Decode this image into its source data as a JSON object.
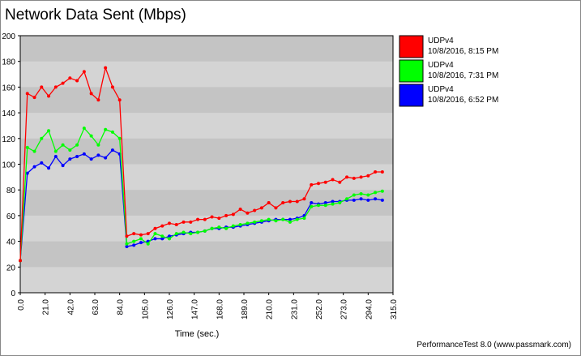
{
  "chart_data": {
    "type": "line",
    "title": "Network Data Sent (Mbps)",
    "x_label": "Time (sec.)",
    "footer": "PerformanceTest 8.0 (www.passmark.com)",
    "x": [
      0,
      6,
      12,
      18,
      24,
      30,
      36,
      42,
      48,
      54,
      60,
      66,
      72,
      78,
      84,
      90,
      96,
      102,
      108,
      114,
      120,
      126,
      132,
      138,
      144,
      150,
      156,
      162,
      168,
      174,
      180,
      186,
      192,
      198,
      204,
      210,
      216,
      222,
      228,
      234,
      240,
      246,
      252,
      258,
      264,
      270,
      276,
      282,
      288,
      294,
      300,
      306
    ],
    "series": [
      {
        "name": "UDPv4",
        "date": "10/8/2016, 8:15 PM",
        "color": "#ff0000",
        "values": [
          25,
          155,
          152,
          160,
          153,
          160,
          163,
          167,
          165,
          172,
          155,
          150,
          175,
          160,
          150,
          44,
          46,
          45,
          46,
          50,
          52,
          54,
          53,
          55,
          55,
          57,
          57,
          59,
          58,
          60,
          61,
          65,
          62,
          64,
          66,
          70,
          66,
          70,
          71,
          71,
          73,
          84,
          85,
          86,
          88,
          86,
          90,
          89,
          90,
          91,
          94,
          94
        ]
      },
      {
        "name": "UDPv4",
        "date": "10/8/2016, 7:31 PM",
        "color": "#00ff00",
        "values": [
          25,
          113,
          110,
          120,
          126,
          110,
          115,
          111,
          115,
          128,
          122,
          115,
          127,
          125,
          120,
          38,
          40,
          42,
          38,
          46,
          44,
          42,
          46,
          47,
          46,
          47,
          48,
          50,
          51,
          50,
          52,
          53,
          54,
          55,
          56,
          57,
          56,
          57,
          55,
          57,
          58,
          67,
          68,
          68,
          69,
          70,
          73,
          76,
          77,
          76,
          78,
          79
        ]
      },
      {
        "name": "UDPv4",
        "date": "10/8/2016, 6:52 PM",
        "color": "#0000ff",
        "values": [
          25,
          93,
          98,
          101,
          97,
          106,
          99,
          104,
          106,
          108,
          104,
          107,
          105,
          111,
          108,
          36,
          37,
          39,
          40,
          42,
          42,
          44,
          45,
          46,
          47,
          47,
          48,
          50,
          50,
          51,
          51,
          52,
          53,
          54,
          55,
          56,
          57,
          57,
          57,
          58,
          60,
          70,
          69,
          70,
          71,
          71,
          72,
          72,
          73,
          72,
          73,
          72
        ]
      }
    ],
    "xlim": [
      0,
      315
    ],
    "xticks": [
      {
        "value": 0,
        "label": "0.0"
      },
      {
        "value": 21,
        "label": "21.0"
      },
      {
        "value": 42,
        "label": "42.0"
      },
      {
        "value": 63,
        "label": "63.0"
      },
      {
        "value": 84,
        "label": "84.0"
      },
      {
        "value": 105,
        "label": "105.0"
      },
      {
        "value": 126,
        "label": "126.0"
      },
      {
        "value": 147,
        "label": "147.0"
      },
      {
        "value": 168,
        "label": "168.0"
      },
      {
        "value": 189,
        "label": "189.0"
      },
      {
        "value": 210,
        "label": "210.0"
      },
      {
        "value": 231,
        "label": "231.0"
      },
      {
        "value": 252,
        "label": "252.0"
      },
      {
        "value": 273,
        "label": "273.0"
      },
      {
        "value": 294,
        "label": "294.0"
      },
      {
        "value": 315,
        "label": "315.0"
      }
    ],
    "ylim": [
      0,
      200
    ],
    "yticks": [
      0,
      20,
      40,
      60,
      80,
      100,
      120,
      140,
      160,
      180,
      200
    ],
    "grid": true
  }
}
